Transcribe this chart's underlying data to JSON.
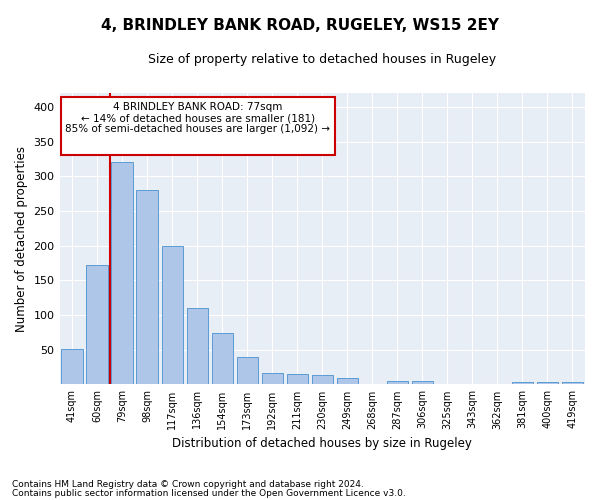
{
  "title": "4, BRINDLEY BANK ROAD, RUGELEY, WS15 2EY",
  "subtitle": "Size of property relative to detached houses in Rugeley",
  "xlabel": "Distribution of detached houses by size in Rugeley",
  "ylabel": "Number of detached properties",
  "footnote1": "Contains HM Land Registry data © Crown copyright and database right 2024.",
  "footnote2": "Contains public sector information licensed under the Open Government Licence v3.0.",
  "annotation_title": "4 BRINDLEY BANK ROAD: 77sqm",
  "annotation_line1": "← 14% of detached houses are smaller (181)",
  "annotation_line2": "85% of semi-detached houses are larger (1,092) →",
  "bar_color": "#aec6e8",
  "bar_edge_color": "#5b9bd5",
  "vline_color": "#cc0000",
  "annotation_box_color": "#cc0000",
  "bg_color": "#e8eef6",
  "categories": [
    "41sqm",
    "60sqm",
    "79sqm",
    "98sqm",
    "117sqm",
    "136sqm",
    "154sqm",
    "173sqm",
    "192sqm",
    "211sqm",
    "230sqm",
    "249sqm",
    "268sqm",
    "287sqm",
    "306sqm",
    "325sqm",
    "343sqm",
    "362sqm",
    "381sqm",
    "400sqm",
    "419sqm"
  ],
  "values": [
    51,
    172,
    320,
    280,
    200,
    110,
    74,
    40,
    16,
    15,
    14,
    9,
    0,
    5,
    5,
    0,
    0,
    0,
    4,
    4,
    4
  ],
  "ylim": [
    0,
    420
  ],
  "yticks": [
    0,
    50,
    100,
    150,
    200,
    250,
    300,
    350,
    400
  ],
  "vline_x": 1.5
}
